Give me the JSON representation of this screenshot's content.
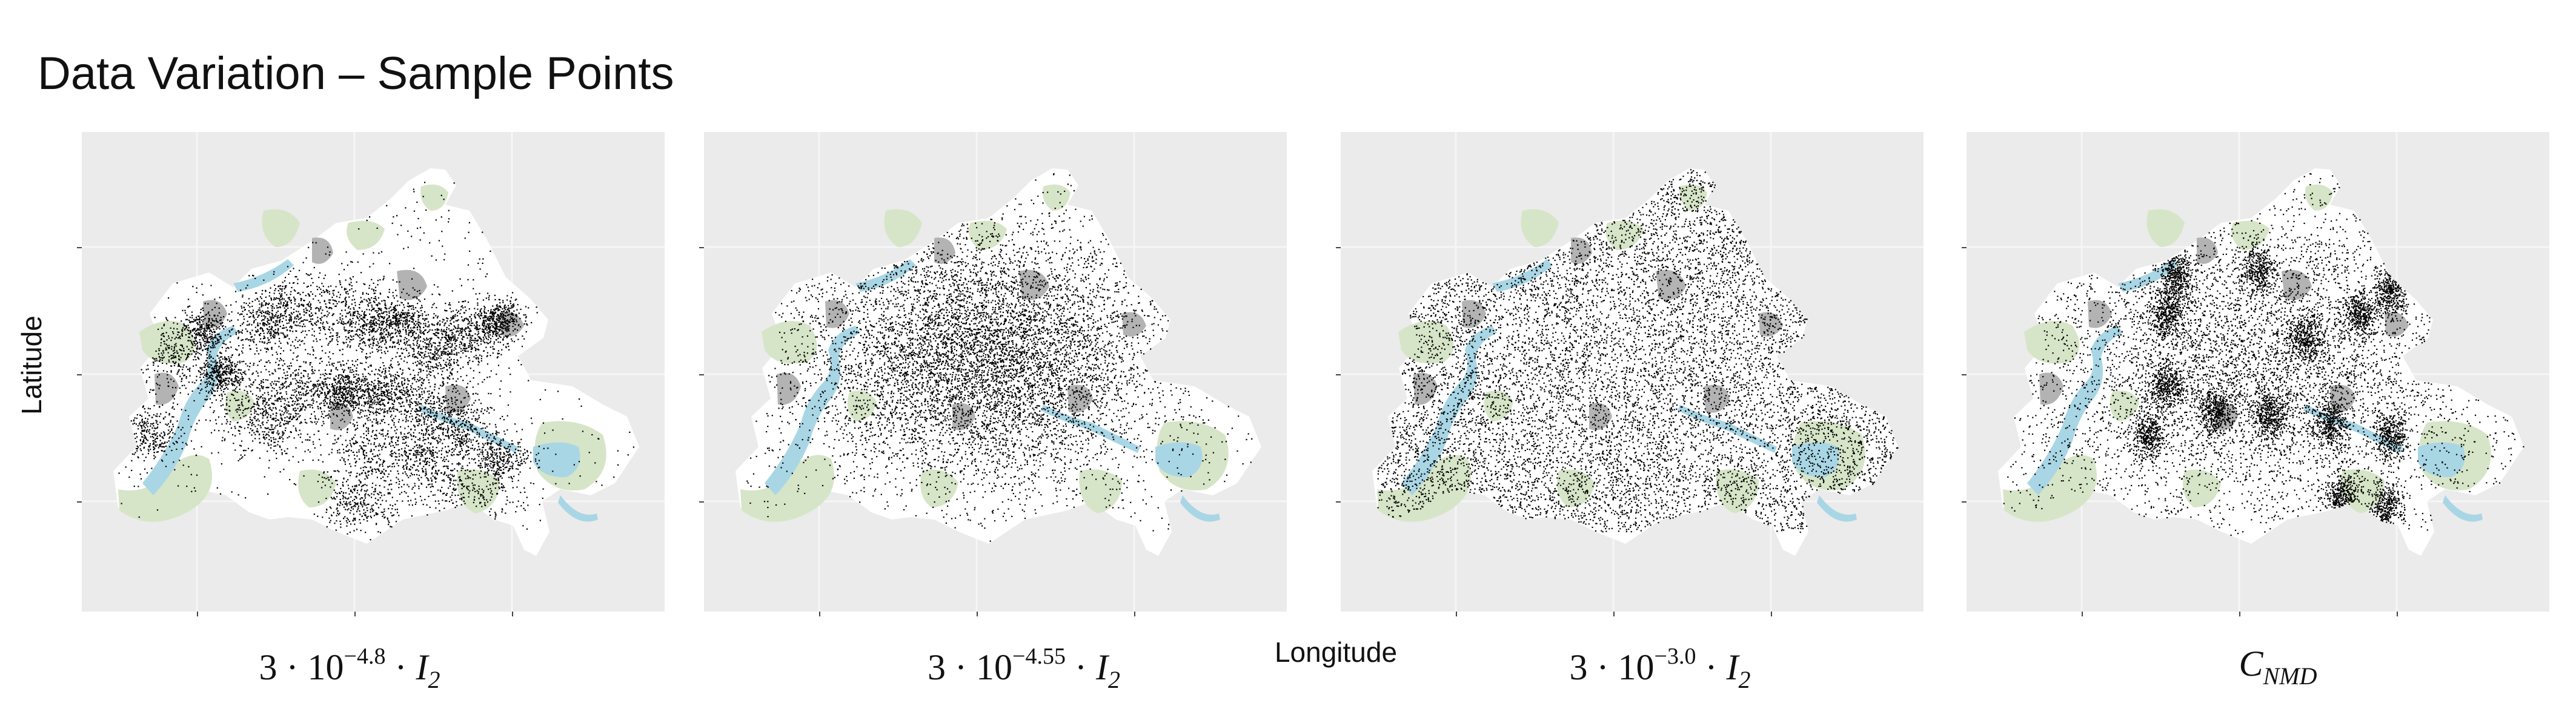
{
  "title": "Data Variation – Sample Points",
  "axis": {
    "ylabel": "Latitude",
    "xlabel": "Longitude"
  },
  "colors": {
    "panel_bg": "#ebebeb",
    "land": "#ffffff",
    "forest": "#d6e5c7",
    "builtup": "#b3b3b3",
    "water": "#a9d6e5",
    "points": "#000000"
  },
  "panels": [
    {
      "id": "p1",
      "caption": {
        "prefix": "3 · 10",
        "exponent": "−4.8",
        "suffix": "· ",
        "var": "I",
        "sub": "2"
      },
      "pattern": "clustered"
    },
    {
      "id": "p2",
      "caption": {
        "prefix": "3 · 10",
        "exponent": "−4.55",
        "suffix": "· ",
        "var": "I",
        "sub": "2"
      },
      "pattern": "central"
    },
    {
      "id": "p3",
      "caption": {
        "prefix": "3 · 10",
        "exponent": "−3.0",
        "suffix": "· ",
        "var": "I",
        "sub": "2"
      },
      "pattern": "uniform"
    },
    {
      "id": "p4",
      "caption": {
        "prefix": "",
        "exponent": "",
        "suffix": "",
        "var": "C",
        "sub": "NMD"
      },
      "pattern": "nmd"
    }
  ]
}
